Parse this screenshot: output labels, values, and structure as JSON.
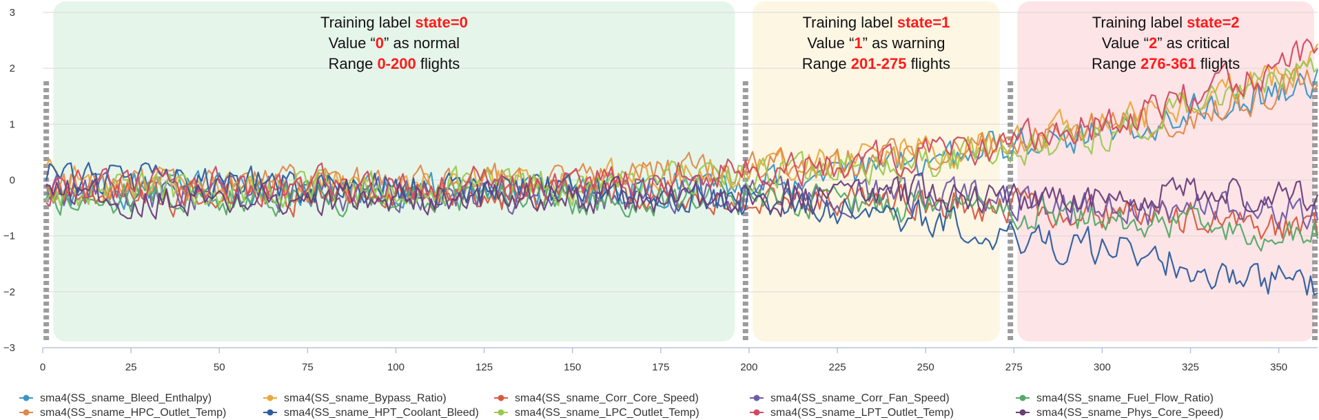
{
  "chart_data": {
    "type": "line",
    "xlim": [
      0,
      361
    ],
    "ylim": [
      -3,
      3
    ],
    "x_ticks": [
      0,
      25,
      50,
      75,
      100,
      125,
      150,
      175,
      200,
      225,
      250,
      275,
      300,
      325,
      350
    ],
    "y_ticks": [
      -3,
      -2,
      -1,
      0,
      1,
      2,
      3
    ],
    "grid": "horizontal",
    "legend_position": "bottom",
    "dividers_x": [
      1,
      199,
      274,
      361
    ],
    "regions": [
      {
        "x_range": [
          3,
          196
        ],
        "color": "#e6f5ea",
        "lines": [
          {
            "parts": [
              {
                "text": "Training label ",
                "hl": false
              },
              {
                "text": "state=0",
                "hl": true
              }
            ]
          },
          {
            "parts": [
              {
                "text": "Value “",
                "hl": false
              },
              {
                "text": "0",
                "hl": true
              },
              {
                "text": "” as normal",
                "hl": false
              }
            ]
          },
          {
            "parts": [
              {
                "text": "Range ",
                "hl": false
              },
              {
                "text": "0-200",
                "hl": true
              },
              {
                "text": " flights",
                "hl": false
              }
            ]
          }
        ]
      },
      {
        "x_range": [
          201,
          271
        ],
        "color": "#fdf6e3",
        "lines": [
          {
            "parts": [
              {
                "text": "Training label ",
                "hl": false
              },
              {
                "text": "state=1",
                "hl": true
              }
            ]
          },
          {
            "parts": [
              {
                "text": "Value “",
                "hl": false
              },
              {
                "text": "1",
                "hl": true
              },
              {
                "text": "” as warning",
                "hl": false
              }
            ]
          },
          {
            "parts": [
              {
                "text": "Range ",
                "hl": false
              },
              {
                "text": "201-275",
                "hl": true
              },
              {
                "text": " flights",
                "hl": false
              }
            ]
          }
        ]
      },
      {
        "x_range": [
          276,
          360
        ],
        "color": "#fde4e6",
        "lines": [
          {
            "parts": [
              {
                "text": "Training label ",
                "hl": false
              },
              {
                "text": "state=2",
                "hl": true
              }
            ]
          },
          {
            "parts": [
              {
                "text": "Value “",
                "hl": false
              },
              {
                "text": "2",
                "hl": true
              },
              {
                "text": "” as critical",
                "hl": false
              }
            ]
          },
          {
            "parts": [
              {
                "text": "Range ",
                "hl": false
              },
              {
                "text": "276-361",
                "hl": true
              },
              {
                "text": " flights",
                "hl": false
              }
            ]
          }
        ]
      }
    ],
    "series": [
      {
        "name": "sma4(SS_sname_Bleed_Enthalpy)",
        "color": "#3a95c4",
        "points": [
          [
            0,
            -0.1
          ],
          [
            25,
            -0.2
          ],
          [
            50,
            -0.15
          ],
          [
            75,
            -0.2
          ],
          [
            100,
            -0.2
          ],
          [
            125,
            -0.2
          ],
          [
            150,
            -0.2
          ],
          [
            175,
            -0.15
          ],
          [
            200,
            0.0
          ],
          [
            225,
            0.1
          ],
          [
            250,
            0.3
          ],
          [
            275,
            0.6
          ],
          [
            300,
            0.9
          ],
          [
            325,
            1.2
          ],
          [
            350,
            1.6
          ],
          [
            360,
            1.8
          ]
        ]
      },
      {
        "name": "sma4(SS_sname_Bypass_Ratio)",
        "color": "#eaa83c",
        "points": [
          [
            0,
            0.0
          ],
          [
            25,
            -0.1
          ],
          [
            50,
            -0.1
          ],
          [
            75,
            -0.1
          ],
          [
            100,
            -0.1
          ],
          [
            125,
            0.0
          ],
          [
            150,
            0.0
          ],
          [
            175,
            0.05
          ],
          [
            200,
            0.2
          ],
          [
            225,
            0.35
          ],
          [
            250,
            0.5
          ],
          [
            275,
            0.7
          ],
          [
            300,
            1.0
          ],
          [
            325,
            1.4
          ],
          [
            350,
            1.9
          ],
          [
            360,
            2.1
          ]
        ]
      },
      {
        "name": "sma4(SS_sname_Corr_Core_Speed)",
        "color": "#d9593d",
        "points": [
          [
            0,
            -0.25
          ],
          [
            25,
            -0.3
          ],
          [
            50,
            -0.3
          ],
          [
            75,
            -0.3
          ],
          [
            100,
            -0.3
          ],
          [
            125,
            -0.3
          ],
          [
            150,
            -0.3
          ],
          [
            175,
            -0.3
          ],
          [
            200,
            -0.35
          ],
          [
            225,
            -0.4
          ],
          [
            250,
            -0.45
          ],
          [
            275,
            -0.5
          ],
          [
            300,
            -0.6
          ],
          [
            325,
            -0.7
          ],
          [
            350,
            -0.8
          ],
          [
            360,
            -0.85
          ]
        ]
      },
      {
        "name": "sma4(SS_sname_Corr_Fan_Speed)",
        "color": "#6f5ba7",
        "points": [
          [
            0,
            -0.2
          ],
          [
            25,
            -0.25
          ],
          [
            50,
            -0.25
          ],
          [
            75,
            -0.25
          ],
          [
            100,
            -0.25
          ],
          [
            125,
            -0.25
          ],
          [
            150,
            -0.25
          ],
          [
            175,
            -0.25
          ],
          [
            200,
            -0.25
          ],
          [
            225,
            -0.3
          ],
          [
            250,
            -0.3
          ],
          [
            275,
            -0.35
          ],
          [
            300,
            -0.5
          ],
          [
            325,
            -0.55
          ],
          [
            350,
            -0.55
          ],
          [
            360,
            -0.6
          ]
        ]
      },
      {
        "name": "sma4(SS_sname_Fuel_Flow_Ratio)",
        "color": "#55a868",
        "points": [
          [
            0,
            -0.3
          ],
          [
            25,
            -0.3
          ],
          [
            50,
            -0.3
          ],
          [
            75,
            -0.3
          ],
          [
            100,
            -0.3
          ],
          [
            125,
            -0.3
          ],
          [
            150,
            -0.3
          ],
          [
            175,
            -0.3
          ],
          [
            200,
            -0.35
          ],
          [
            225,
            -0.4
          ],
          [
            250,
            -0.5
          ],
          [
            275,
            -0.6
          ],
          [
            300,
            -0.7
          ],
          [
            325,
            -0.8
          ],
          [
            350,
            -0.95
          ],
          [
            360,
            -1.0
          ]
        ]
      },
      {
        "name": "sma4(SS_sname_HPC_Outlet_Temp)",
        "color": "#e0894a",
        "points": [
          [
            0,
            -0.1
          ],
          [
            25,
            -0.1
          ],
          [
            50,
            -0.1
          ],
          [
            75,
            -0.05
          ],
          [
            100,
            -0.05
          ],
          [
            125,
            0.0
          ],
          [
            150,
            0.05
          ],
          [
            175,
            0.1
          ],
          [
            200,
            0.15
          ],
          [
            225,
            0.3
          ],
          [
            250,
            0.45
          ],
          [
            275,
            0.65
          ],
          [
            300,
            0.9
          ],
          [
            325,
            1.2
          ],
          [
            350,
            1.6
          ],
          [
            360,
            1.9
          ]
        ]
      },
      {
        "name": "sma4(SS_sname_HPT_Coolant_Bleed)",
        "color": "#2b5c9e",
        "points": [
          [
            0,
            0.1
          ],
          [
            25,
            0.0
          ],
          [
            50,
            -0.05
          ],
          [
            75,
            -0.1
          ],
          [
            100,
            -0.15
          ],
          [
            125,
            -0.15
          ],
          [
            150,
            -0.2
          ],
          [
            175,
            -0.2
          ],
          [
            200,
            -0.3
          ],
          [
            225,
            -0.5
          ],
          [
            250,
            -0.7
          ],
          [
            275,
            -1.0
          ],
          [
            300,
            -1.2
          ],
          [
            325,
            -1.5
          ],
          [
            350,
            -1.8
          ],
          [
            360,
            -1.95
          ]
        ]
      },
      {
        "name": "sma4(SS_sname_LPC_Outlet_Temp)",
        "color": "#9bc94f",
        "points": [
          [
            0,
            -0.2
          ],
          [
            25,
            -0.2
          ],
          [
            50,
            -0.15
          ],
          [
            75,
            -0.15
          ],
          [
            100,
            -0.15
          ],
          [
            125,
            -0.1
          ],
          [
            150,
            -0.1
          ],
          [
            175,
            0.0
          ],
          [
            200,
            0.1
          ],
          [
            225,
            0.2
          ],
          [
            250,
            0.35
          ],
          [
            275,
            0.5
          ],
          [
            300,
            0.85
          ],
          [
            325,
            1.3
          ],
          [
            350,
            1.8
          ],
          [
            360,
            2.0
          ]
        ]
      },
      {
        "name": "sma4(SS_sname_LPT_Outlet_Temp)",
        "color": "#d04a61",
        "points": [
          [
            0,
            -0.15
          ],
          [
            25,
            -0.15
          ],
          [
            50,
            -0.1
          ],
          [
            75,
            -0.1
          ],
          [
            100,
            -0.1
          ],
          [
            125,
            -0.05
          ],
          [
            150,
            0.0
          ],
          [
            175,
            0.05
          ],
          [
            200,
            0.15
          ],
          [
            225,
            0.3
          ],
          [
            250,
            0.45
          ],
          [
            275,
            0.7
          ],
          [
            300,
            1.0
          ],
          [
            325,
            1.5
          ],
          [
            350,
            2.0
          ],
          [
            360,
            2.3
          ]
        ]
      },
      {
        "name": "sma4(SS_sname_Phys_Core_Speed)",
        "color": "#6a3d7a",
        "points": [
          [
            0,
            -0.3
          ],
          [
            25,
            -0.3
          ],
          [
            50,
            -0.3
          ],
          [
            75,
            -0.3
          ],
          [
            100,
            -0.3
          ],
          [
            125,
            -0.3
          ],
          [
            150,
            -0.3
          ],
          [
            175,
            -0.3
          ],
          [
            200,
            -0.3
          ],
          [
            225,
            -0.3
          ],
          [
            250,
            -0.25
          ],
          [
            275,
            -0.35
          ],
          [
            300,
            -0.3
          ],
          [
            325,
            -0.2
          ],
          [
            350,
            -0.3
          ],
          [
            360,
            -0.35
          ]
        ]
      }
    ]
  }
}
